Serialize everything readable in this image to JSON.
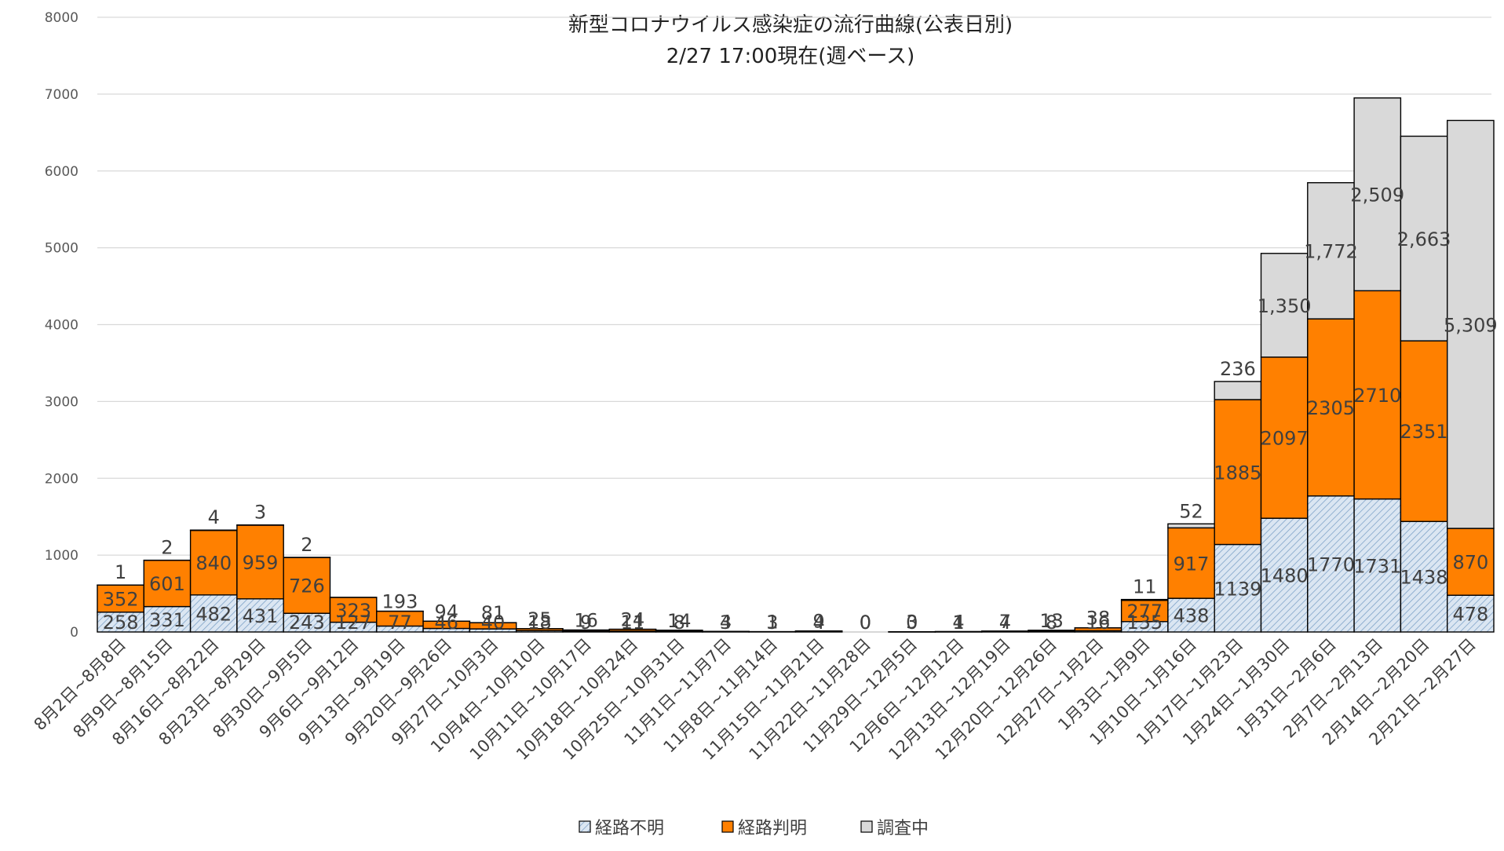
{
  "chart_data": {
    "type": "bar",
    "stacked": true,
    "title": "新型コロナウイルス感染症の流行曲線(公表日別)",
    "subtitle": "2/27 17:00現在(週ベース)",
    "xlabel": "",
    "ylabel": "",
    "ylim": [
      0,
      8000
    ],
    "yticks": [
      0,
      1000,
      2000,
      3000,
      4000,
      5000,
      6000,
      7000,
      8000
    ],
    "grid": true,
    "legend_position": "bottom",
    "categories": [
      "8月2日~8月8日",
      "8月9日~8月15日",
      "8月16日~8月22日",
      "8月23日~8月29日",
      "8月30日~9月5日",
      "9月6日~9月12日",
      "9月13日~9月19日",
      "9月20日~9月26日",
      "9月27日~10月3日",
      "10月4日~10月10日",
      "10月11日~10月17日",
      "10月18日~10月24日",
      "10月25日~10月31日",
      "11月1日~11月7日",
      "11月8日~11月14日",
      "11月15日~11月21日",
      "11月22日~11月28日",
      "11月29日~12月5日",
      "12月6日~12月12日",
      "12月13日~12月19日",
      "12月20日~12月26日",
      "12月27日~1月2日",
      "1月3日~1月9日",
      "1月10日~1月16日",
      "1月17日~1月23日",
      "1月24日~1月30日",
      "1月31日~2月6日",
      "2月7日~2月13日",
      "2月14日~2月20日",
      "2月21日~2月27日"
    ],
    "series": [
      {
        "name": "経路不明",
        "color": "#dbe6f2",
        "pattern": "hatch",
        "values": [
          258,
          331,
          482,
          431,
          243,
          127,
          77,
          46,
          40,
          18,
          9,
          11,
          8,
          3,
          3,
          4,
          0,
          0,
          1,
          4,
          8,
          16,
          135,
          438,
          1139,
          1480,
          1770,
          1731,
          1438,
          478
        ],
        "labels": [
          "258",
          "331",
          "482",
          "431",
          "243",
          "127",
          "77",
          "46",
          "40",
          "18",
          "9",
          "11",
          "8",
          "3",
          "3",
          "4",
          "0",
          "0",
          "1",
          "4",
          "8",
          "16",
          "135",
          "438",
          "1139",
          "1480",
          "1770",
          "1731",
          "1438",
          "478"
        ]
      },
      {
        "name": "経路判明",
        "color": "#ff8000",
        "values": [
          352,
          601,
          840,
          959,
          726,
          323,
          193,
          94,
          81,
          25,
          16,
          24,
          14,
          4,
          1,
          9,
          0,
          3,
          4,
          7,
          13,
          38,
          277,
          917,
          1885,
          2097,
          2305,
          2710,
          2351,
          870
        ],
        "labels": [
          "352",
          "601",
          "840",
          "959",
          "726",
          "323",
          "193",
          "94",
          "81",
          "25",
          "16",
          "24",
          "14",
          "4",
          "1",
          "9",
          "0",
          "3",
          "4",
          "7",
          "13",
          "38",
          "277",
          "917",
          "1885",
          "2097",
          "2305",
          "2710",
          "2351",
          "870"
        ]
      },
      {
        "name": "調査中",
        "color": "#d9d9d9",
        "values": [
          1,
          2,
          4,
          3,
          2,
          0,
          0,
          0,
          0,
          0,
          0,
          0,
          0,
          0,
          0,
          0,
          0,
          0,
          0,
          0,
          0,
          0,
          11,
          52,
          236,
          1350,
          1772,
          2509,
          2663,
          5309
        ],
        "labels": [
          "1",
          "2",
          "4",
          "3",
          "2",
          "",
          "",
          "",
          "",
          "",
          "",
          "",
          "",
          "",
          "",
          "",
          "",
          "",
          "",
          "",
          "",
          "",
          "11",
          "52",
          "236",
          "1,350",
          "1,772",
          "2,509",
          "2,663",
          "5,309"
        ]
      }
    ]
  }
}
